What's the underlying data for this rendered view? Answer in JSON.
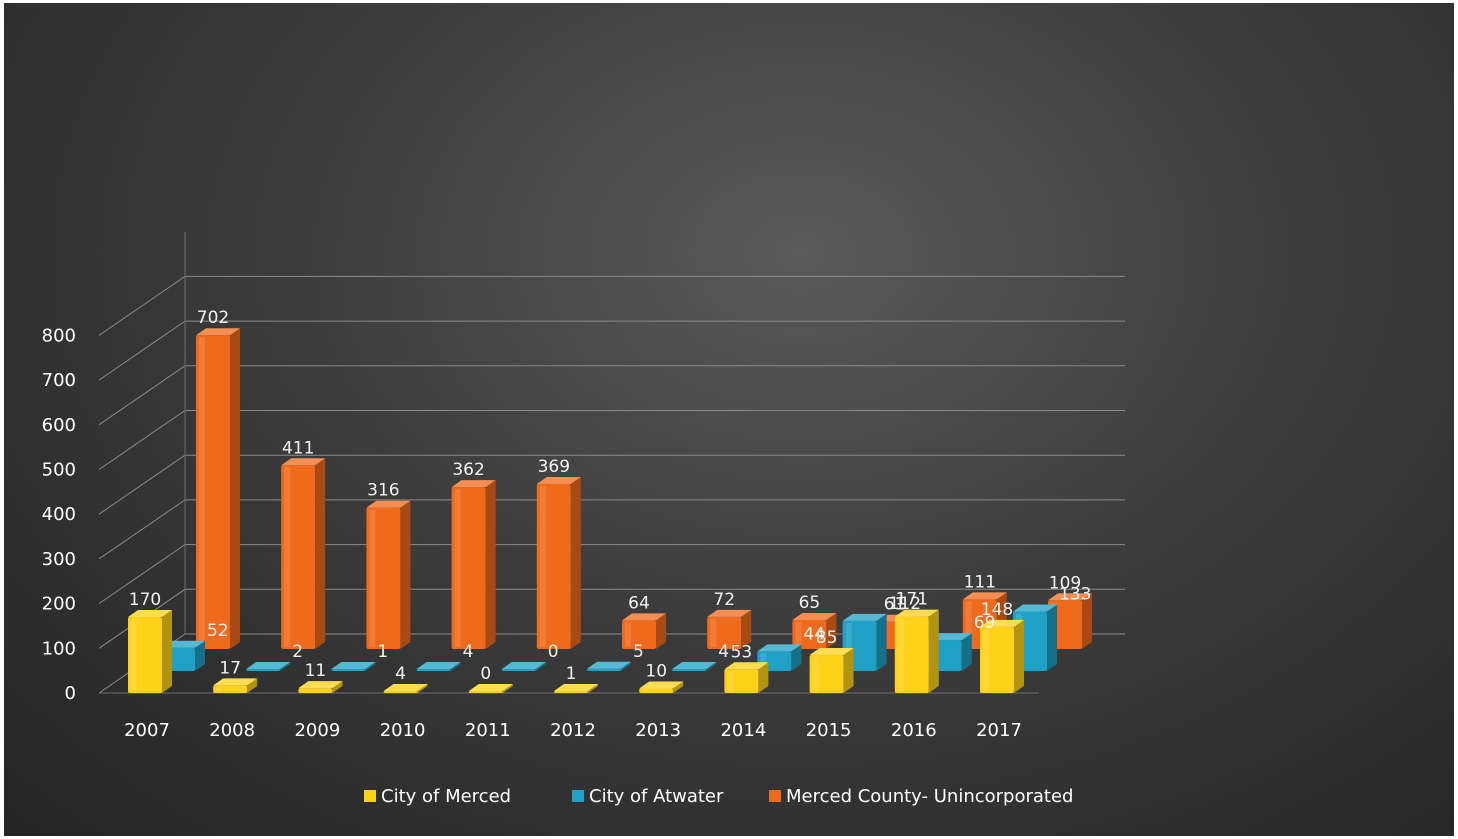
{
  "chart_data": {
    "type": "bar",
    "categories": [
      "2007",
      "2008",
      "2009",
      "2010",
      "2011",
      "2012",
      "2013",
      "2014",
      "2015",
      "2016",
      "2017"
    ],
    "series": [
      {
        "name": "City of Merced",
        "values": [
          170,
          17,
          11,
          4,
          0,
          1,
          10,
          53,
          85,
          171,
          148
        ],
        "color": "#ffd21a"
      },
      {
        "name": "City of Atwater",
        "values": [
          52,
          2,
          1,
          4,
          0,
          5,
          4,
          44,
          112,
          69,
          133
        ],
        "color": "#1fa0c4"
      },
      {
        "name": "Merced County- Unincorporated",
        "values": [
          702,
          411,
          316,
          362,
          369,
          64,
          72,
          65,
          61,
          111,
          109
        ],
        "color": "#ef6a1c"
      }
    ],
    "ylim": [
      0,
      800
    ],
    "yticks": [
      "0",
      "100",
      "200",
      "300",
      "400",
      "500",
      "600",
      "700",
      "800"
    ],
    "grid": true,
    "legend": "bottom",
    "style": "3d-column"
  }
}
